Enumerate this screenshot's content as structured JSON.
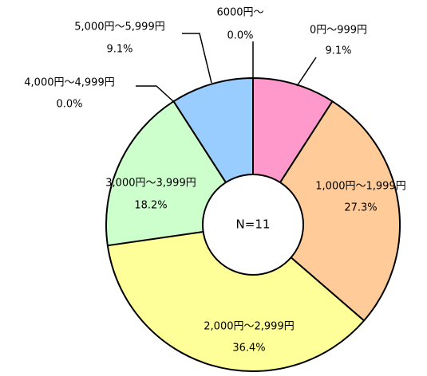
{
  "chart_data": {
    "type": "pie",
    "variant": "donut",
    "center_label": "N=11",
    "slices": [
      {
        "label": "0円～999円",
        "value": 9.1,
        "value_label": "9.1%",
        "color": "#ff99cc"
      },
      {
        "label": "1,000円～1,999円",
        "value": 27.3,
        "value_label": "27.3%",
        "color": "#ffcc99"
      },
      {
        "label": "2,000円～2,999円",
        "value": 36.4,
        "value_label": "36.4%",
        "color": "#ffff99"
      },
      {
        "label": "3,000円～3,999円",
        "value": 18.2,
        "value_label": "18.2%",
        "color": "#ccffcc"
      },
      {
        "label": "4,000円～4,999円",
        "value": 0.0,
        "value_label": "0.0%",
        "color": "#99ccff"
      },
      {
        "label": "5,000円～5,999円",
        "value": 9.1,
        "value_label": "9.1%",
        "color": "#99ccff"
      },
      {
        "label": "6000円～",
        "value": 0.0,
        "value_label": "0.0%",
        "color": "#cccccc"
      }
    ],
    "start_angle": "12 o'clock",
    "direction": "clockwise",
    "legend": "none"
  }
}
